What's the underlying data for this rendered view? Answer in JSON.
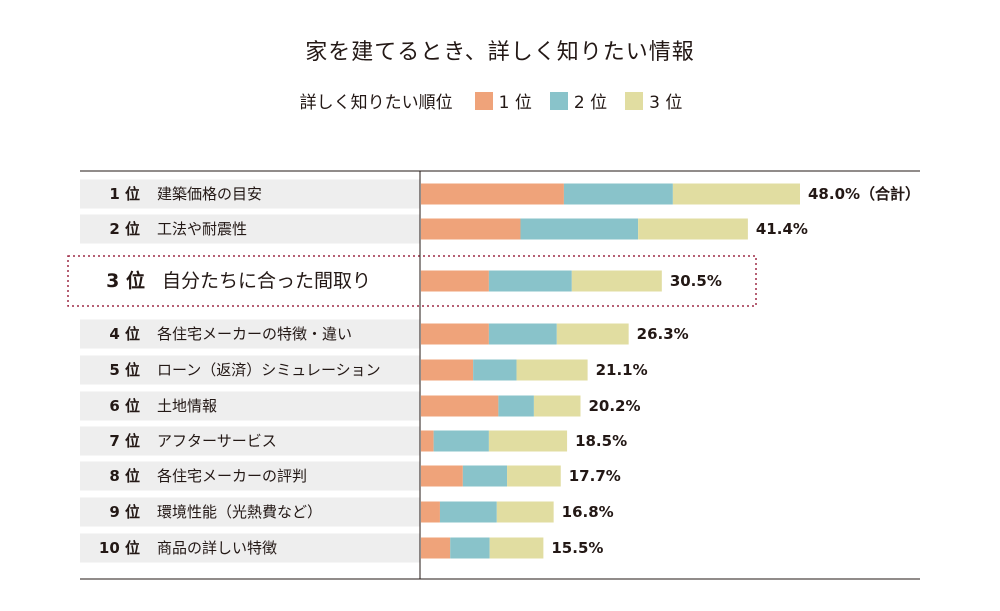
{
  "chart_data": {
    "type": "bar",
    "stacked": true,
    "orientation": "horizontal",
    "title": "家を建てるとき、詳しく知りたい情報",
    "legend_title": "詳しく知りたい順位",
    "legend_position": "top",
    "categories": [
      "建築価格の目安",
      "工法や耐震性",
      "自分たちに合った間取り",
      "各住宅メーカーの特徴・違い",
      "ローン（返済）シミュレーション",
      "土地情報",
      "アフターサービス",
      "各住宅メーカーの評判",
      "環境性能（光熱費など）",
      "商品の詳しい特徴"
    ],
    "ranks": [
      "1 位",
      "2 位",
      "3 位",
      "4 位",
      "5 位",
      "6 位",
      "7 位",
      "8 位",
      "9 位",
      "10 位"
    ],
    "series": [
      {
        "name": "1 位",
        "color": "#EFA37A",
        "values": [
          18.1,
          12.6,
          8.6,
          8.6,
          6.6,
          9.8,
          1.6,
          5.3,
          2.4,
          3.7
        ]
      },
      {
        "name": "2 位",
        "color": "#89C3CA",
        "values": [
          13.8,
          14.9,
          10.5,
          8.6,
          5.5,
          4.5,
          7.0,
          5.6,
          7.2,
          5.0
        ]
      },
      {
        "name": "3 位",
        "color": "#E1DDA1",
        "values": [
          16.1,
          13.9,
          11.4,
          9.1,
          9.0,
          5.9,
          9.9,
          6.8,
          7.2,
          6.8
        ]
      }
    ],
    "totals": [
      "48.0%",
      "41.4%",
      "30.5%",
      "26.3%",
      "21.1%",
      "20.2%",
      "18.5%",
      "17.7%",
      "16.8%",
      "15.5%"
    ],
    "total_suffix": "（合計）",
    "xlim": [
      0,
      48.0
    ],
    "highlight_index": 2,
    "grid": false
  }
}
